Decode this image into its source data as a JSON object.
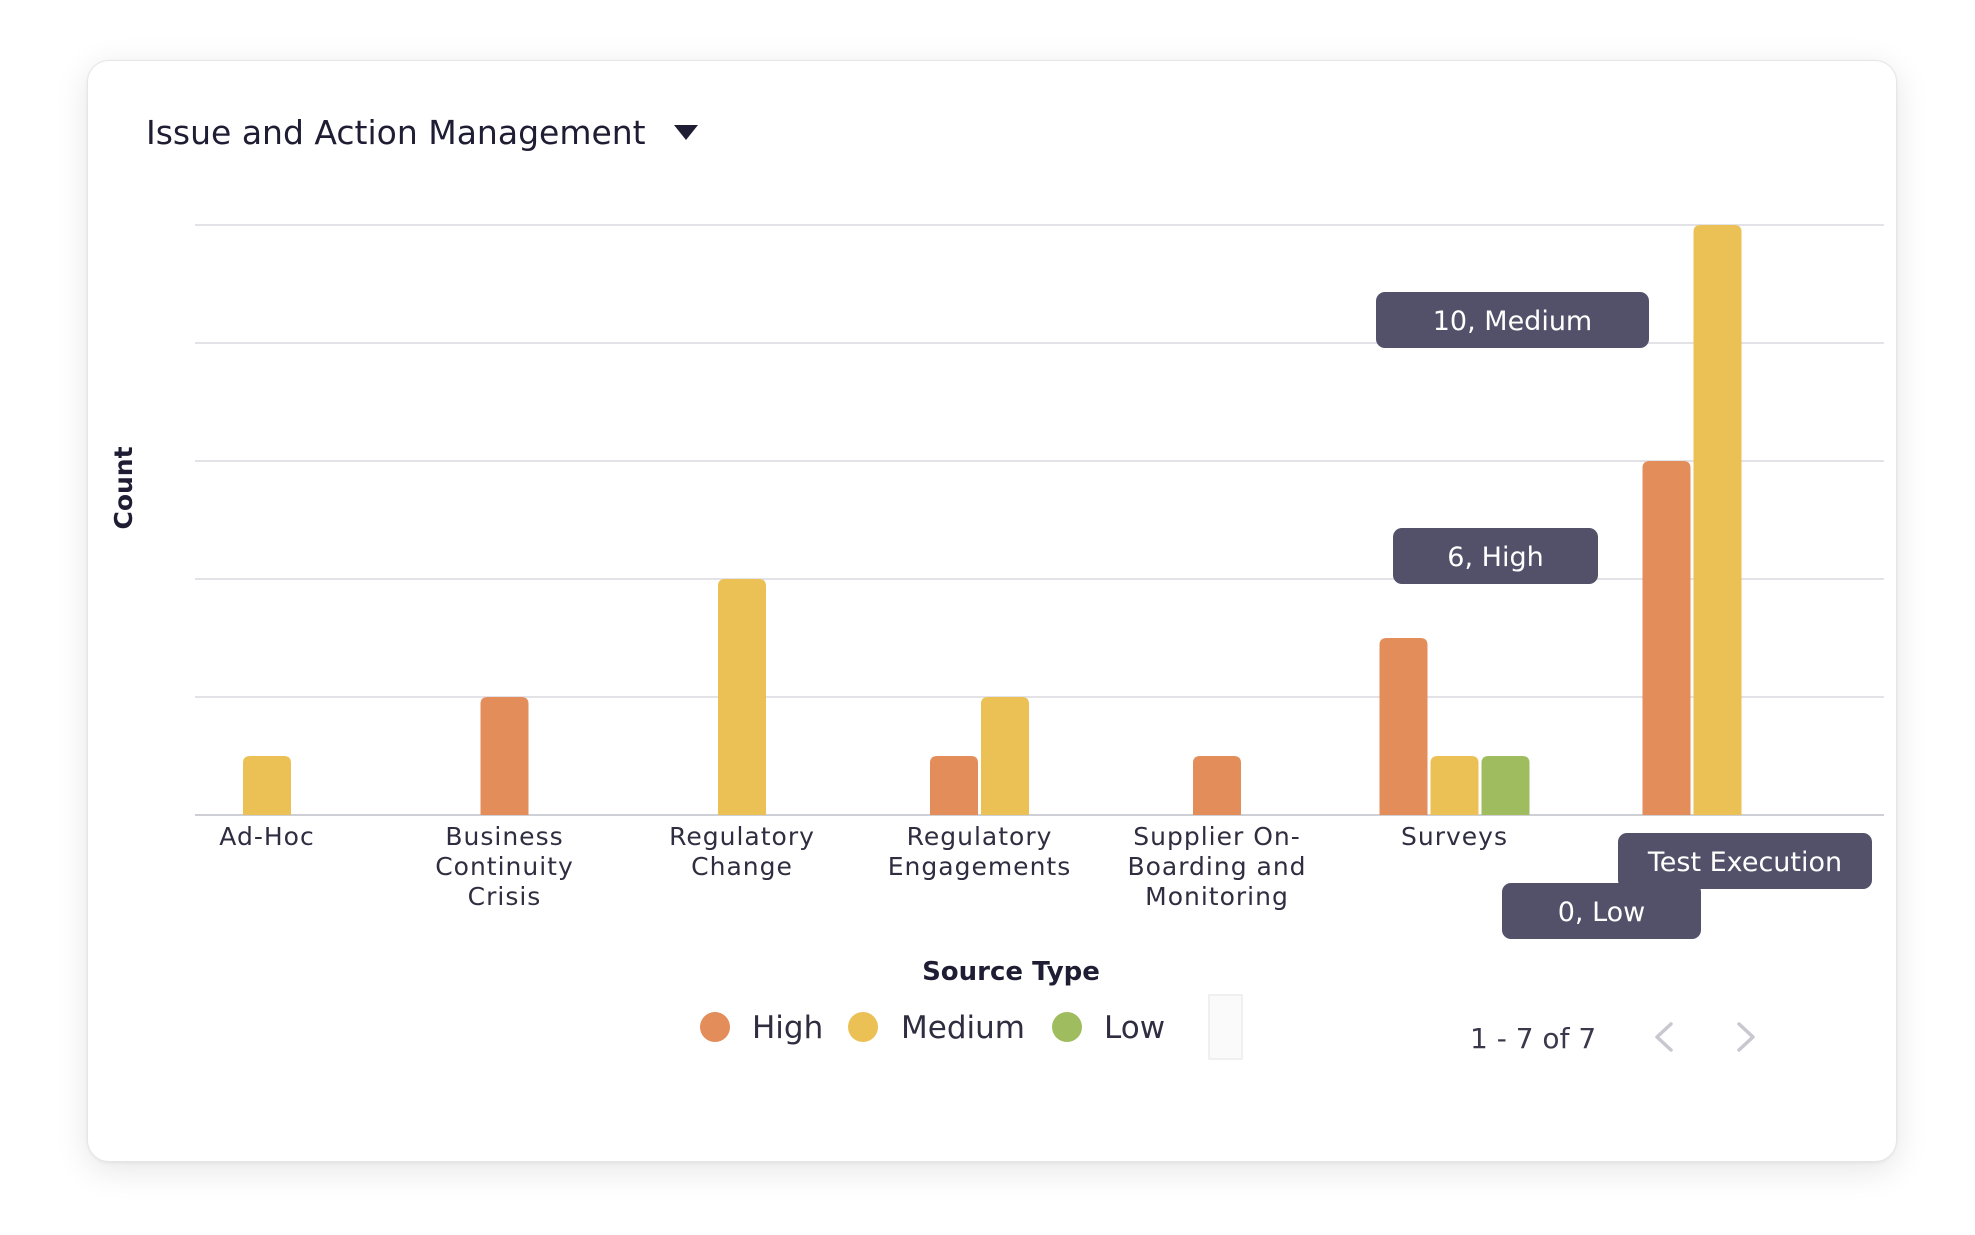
{
  "card": {
    "title": "Issue and Action Management",
    "dropdown_icon": "caret-down-icon"
  },
  "chart_data": {
    "type": "bar",
    "categories": [
      [
        "Ad-Hoc"
      ],
      [
        "Business",
        "Continuity",
        "Crisis"
      ],
      [
        "Regulatory",
        "Change"
      ],
      [
        "Regulatory",
        "Engagements"
      ],
      [
        "Supplier On-",
        "Boarding and",
        "Monitoring"
      ],
      [
        "Surveys"
      ],
      [
        "Test Execution"
      ]
    ],
    "series": [
      {
        "name": "High",
        "color": "#e38d5b",
        "values": [
          0,
          2,
          0,
          1,
          1,
          3,
          6
        ]
      },
      {
        "name": "Medium",
        "color": "#ebc155",
        "values": [
          1,
          0,
          4,
          2,
          0,
          1,
          10
        ]
      },
      {
        "name": "Low",
        "color": "#9fbd5e",
        "values": [
          0,
          0,
          0,
          0,
          0,
          1,
          0
        ]
      }
    ],
    "xlabel": "Source Type",
    "ylabel": "Count",
    "ylim": [
      0,
      10
    ],
    "grid": true,
    "legend": "bottom-center",
    "tooltips": [
      {
        "text": "10, Medium"
      },
      {
        "text": "6, High"
      },
      {
        "text": "0, Low"
      },
      {
        "text": "Test Execution"
      }
    ]
  },
  "pager": {
    "label": "1 - 7 of 7",
    "prev_icon": "chevron-left-icon",
    "next_icon": "chevron-right-icon"
  }
}
